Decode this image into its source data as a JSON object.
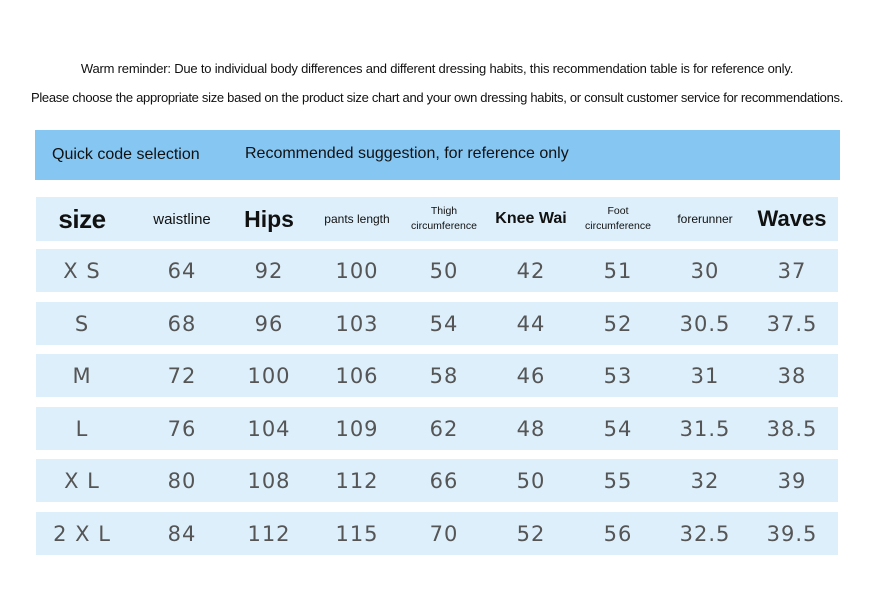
{
  "notice": {
    "line1": "Warm reminder: Due to individual body differences and different dressing habits, this recommendation table is for reference only.",
    "line2": "Please choose the appropriate size based on the product size chart and your own dressing habits, or consult customer service for recommendations."
  },
  "banner": {
    "quick_code": "Quick code selection",
    "suggestion": "Recommended suggestion, for reference only",
    "color": "#85c6f2"
  },
  "table": {
    "row_color": "#ddeffb",
    "headers": {
      "size": "size",
      "waistline": "waistline",
      "hips": "Hips",
      "pants_length": "pants length",
      "thigh_line1": "Thigh",
      "thigh_line2": "circumference",
      "knee": "Knee Wai",
      "foot_line1": "Foot",
      "foot_line2": "circumference",
      "forerunner": "forerunner",
      "waves": "Waves"
    },
    "rows": [
      {
        "size": "X S",
        "waistline": "64",
        "hips": "92",
        "pants_length": "100",
        "thigh": "50",
        "knee": "42",
        "foot": "51",
        "forerunner": "30",
        "waves": "37"
      },
      {
        "size": "S",
        "waistline": "68",
        "hips": "96",
        "pants_length": "103",
        "thigh": "54",
        "knee": "44",
        "foot": "52",
        "forerunner": "30.5",
        "waves": "37.5"
      },
      {
        "size": "M",
        "waistline": "72",
        "hips": "100",
        "pants_length": "106",
        "thigh": "58",
        "knee": "46",
        "foot": "53",
        "forerunner": "31",
        "waves": "38"
      },
      {
        "size": "L",
        "waistline": "76",
        "hips": "104",
        "pants_length": "109",
        "thigh": "62",
        "knee": "48",
        "foot": "54",
        "forerunner": "31.5",
        "waves": "38.5"
      },
      {
        "size": "X L",
        "waistline": "80",
        "hips": "108",
        "pants_length": "112",
        "thigh": "66",
        "knee": "50",
        "foot": "55",
        "forerunner": "32",
        "waves": "39"
      },
      {
        "size": "2 X L",
        "waistline": "84",
        "hips": "112",
        "pants_length": "115",
        "thigh": "70",
        "knee": "52",
        "foot": "56",
        "forerunner": "32.5",
        "waves": "39.5"
      }
    ]
  }
}
